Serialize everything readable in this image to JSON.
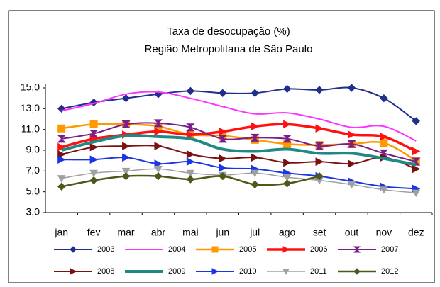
{
  "chart_data": {
    "type": "line",
    "title": "Taxa de desocupação (%)",
    "subtitle": "Região Metropolitana de São Paulo",
    "categories": [
      "jan",
      "fev",
      "mar",
      "abr",
      "mai",
      "jun",
      "jul",
      "ago",
      "set",
      "out",
      "nov",
      "dez"
    ],
    "ylim": [
      3,
      15
    ],
    "yticks": [
      {
        "value": 3,
        "label": "3,0"
      },
      {
        "value": 5,
        "label": "5,0"
      },
      {
        "value": 7,
        "label": "7,0"
      },
      {
        "value": 9,
        "label": "9,0"
      },
      {
        "value": 11,
        "label": "11,0"
      },
      {
        "value": 13,
        "label": "13,0"
      },
      {
        "value": 15,
        "label": "15,0"
      }
    ],
    "grid": false,
    "legend": "bottom",
    "series": [
      {
        "name": "2003",
        "color": "#1f2f8a",
        "marker": "diamond",
        "width": 2,
        "values": [
          13.0,
          13.6,
          14.0,
          14.4,
          14.7,
          14.5,
          14.5,
          14.9,
          14.8,
          15.0,
          14.0,
          11.8
        ]
      },
      {
        "name": "2004",
        "color": "#ff33ff",
        "marker": "none",
        "width": 2,
        "values": [
          12.8,
          13.5,
          14.4,
          14.6,
          14.0,
          13.2,
          12.5,
          12.6,
          12.0,
          11.2,
          11.3,
          9.9
        ]
      },
      {
        "name": "2005",
        "color": "#ff9900",
        "marker": "square",
        "width": 2.5,
        "values": [
          11.1,
          11.5,
          11.5,
          11.3,
          10.5,
          10.4,
          10.0,
          9.6,
          9.5,
          9.6,
          9.7,
          8.0
        ]
      },
      {
        "name": "2006",
        "color": "#ff1111",
        "marker": "triangle-right",
        "width": 3.5,
        "values": [
          9.3,
          10.1,
          10.5,
          10.8,
          10.5,
          10.8,
          11.3,
          11.5,
          11.1,
          10.5,
          10.3,
          8.9
        ]
      },
      {
        "name": "2007",
        "color": "#7a1f8a",
        "marker": "hourglass",
        "width": 2,
        "values": [
          10.1,
          10.6,
          11.5,
          11.6,
          11.2,
          10.1,
          10.2,
          10.1,
          9.4,
          9.6,
          8.7,
          7.9
        ]
      },
      {
        "name": "2008",
        "color": "#7a1010",
        "marker": "triangle-right",
        "width": 2,
        "values": [
          8.6,
          9.3,
          9.4,
          9.4,
          8.6,
          8.2,
          8.3,
          7.8,
          7.9,
          7.7,
          8.3,
          7.2
        ]
      },
      {
        "name": "2009",
        "color": "#1f8a85",
        "marker": "none",
        "width": 4,
        "values": [
          9.0,
          9.8,
          10.4,
          10.3,
          10.1,
          9.1,
          8.9,
          9.1,
          8.7,
          8.7,
          8.2,
          7.6
        ]
      },
      {
        "name": "2010",
        "color": "#1a35e6",
        "marker": "triangle-right",
        "width": 2,
        "values": [
          8.1,
          8.1,
          8.3,
          7.7,
          7.9,
          7.3,
          7.2,
          6.8,
          6.5,
          6.0,
          5.5,
          5.3
        ]
      },
      {
        "name": "2011",
        "color": "#a0a0a0",
        "marker": "triangle-down",
        "width": 1.5,
        "values": [
          6.3,
          6.8,
          7.0,
          7.2,
          6.8,
          6.6,
          6.8,
          6.4,
          6.1,
          5.7,
          5.2,
          4.9
        ]
      },
      {
        "name": "2012",
        "color": "#4a5a1a",
        "marker": "diamond",
        "width": 2.5,
        "values": [
          5.5,
          6.1,
          6.5,
          6.5,
          6.2,
          6.5,
          5.7,
          5.8,
          6.5,
          null,
          null,
          null
        ]
      }
    ]
  }
}
